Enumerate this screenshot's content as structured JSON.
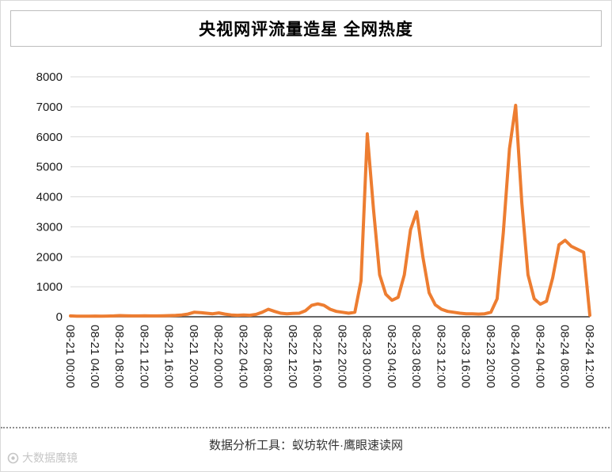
{
  "page": {
    "title": "央视网评流量造星 全网热度",
    "footer": "数据分析工具：蚁坊软件·鹰眼速读网",
    "watermark": "大数据魔镜"
  },
  "chart_data": {
    "type": "line",
    "title": "央视网评流量造星 全网热度",
    "series_name": "全网热度",
    "line_color": "#ED7D31",
    "xlabel": "",
    "ylabel": "",
    "ylim": [
      0,
      8000
    ],
    "yticks": [
      0,
      1000,
      2000,
      3000,
      4000,
      5000,
      6000,
      7000,
      8000
    ],
    "grid": "horizontal",
    "legend": "none",
    "xtick_labels": [
      "08-21 00:00",
      "08-21 04:00",
      "08-21 08:00",
      "08-21 12:00",
      "08-21 16:00",
      "08-21 20:00",
      "08-22 00:00",
      "08-22 04:00",
      "08-22 08:00",
      "08-22 12:00",
      "08-22 16:00",
      "08-22 20:00",
      "08-23 00:00",
      "08-23 04:00",
      "08-23 08:00",
      "08-23 12:00",
      "08-23 16:00",
      "08-23 20:00",
      "08-24 00:00",
      "08-24 04:00",
      "08-24 08:00",
      "08-24 12:00"
    ],
    "x_interval": "1 hour, from 08-21 00:00 to 08-24 12:00",
    "values_hourly": [
      30,
      20,
      20,
      20,
      25,
      20,
      25,
      30,
      40,
      35,
      30,
      30,
      35,
      30,
      30,
      35,
      40,
      45,
      60,
      90,
      150,
      140,
      120,
      100,
      130,
      90,
      60,
      50,
      60,
      50,
      80,
      150,
      250,
      180,
      120,
      100,
      110,
      120,
      200,
      380,
      430,
      380,
      250,
      180,
      150,
      120,
      150,
      1200,
      6100,
      3600,
      1400,
      750,
      550,
      650,
      1400,
      2900,
      3500,
      2000,
      800,
      400,
      250,
      180,
      150,
      120,
      100,
      100,
      90,
      100,
      150,
      600,
      2800,
      5600,
      7050,
      3800,
      1400,
      600,
      420,
      520,
      1300,
      2400,
      2550,
      2350,
      2250,
      2150,
      50
    ],
    "notable_peaks": [
      {
        "x": "08-23 00:00",
        "y": 6100
      },
      {
        "x": "08-23 08:00",
        "y": 3500
      },
      {
        "x": "08-24 00:00",
        "y": 7050
      }
    ]
  }
}
